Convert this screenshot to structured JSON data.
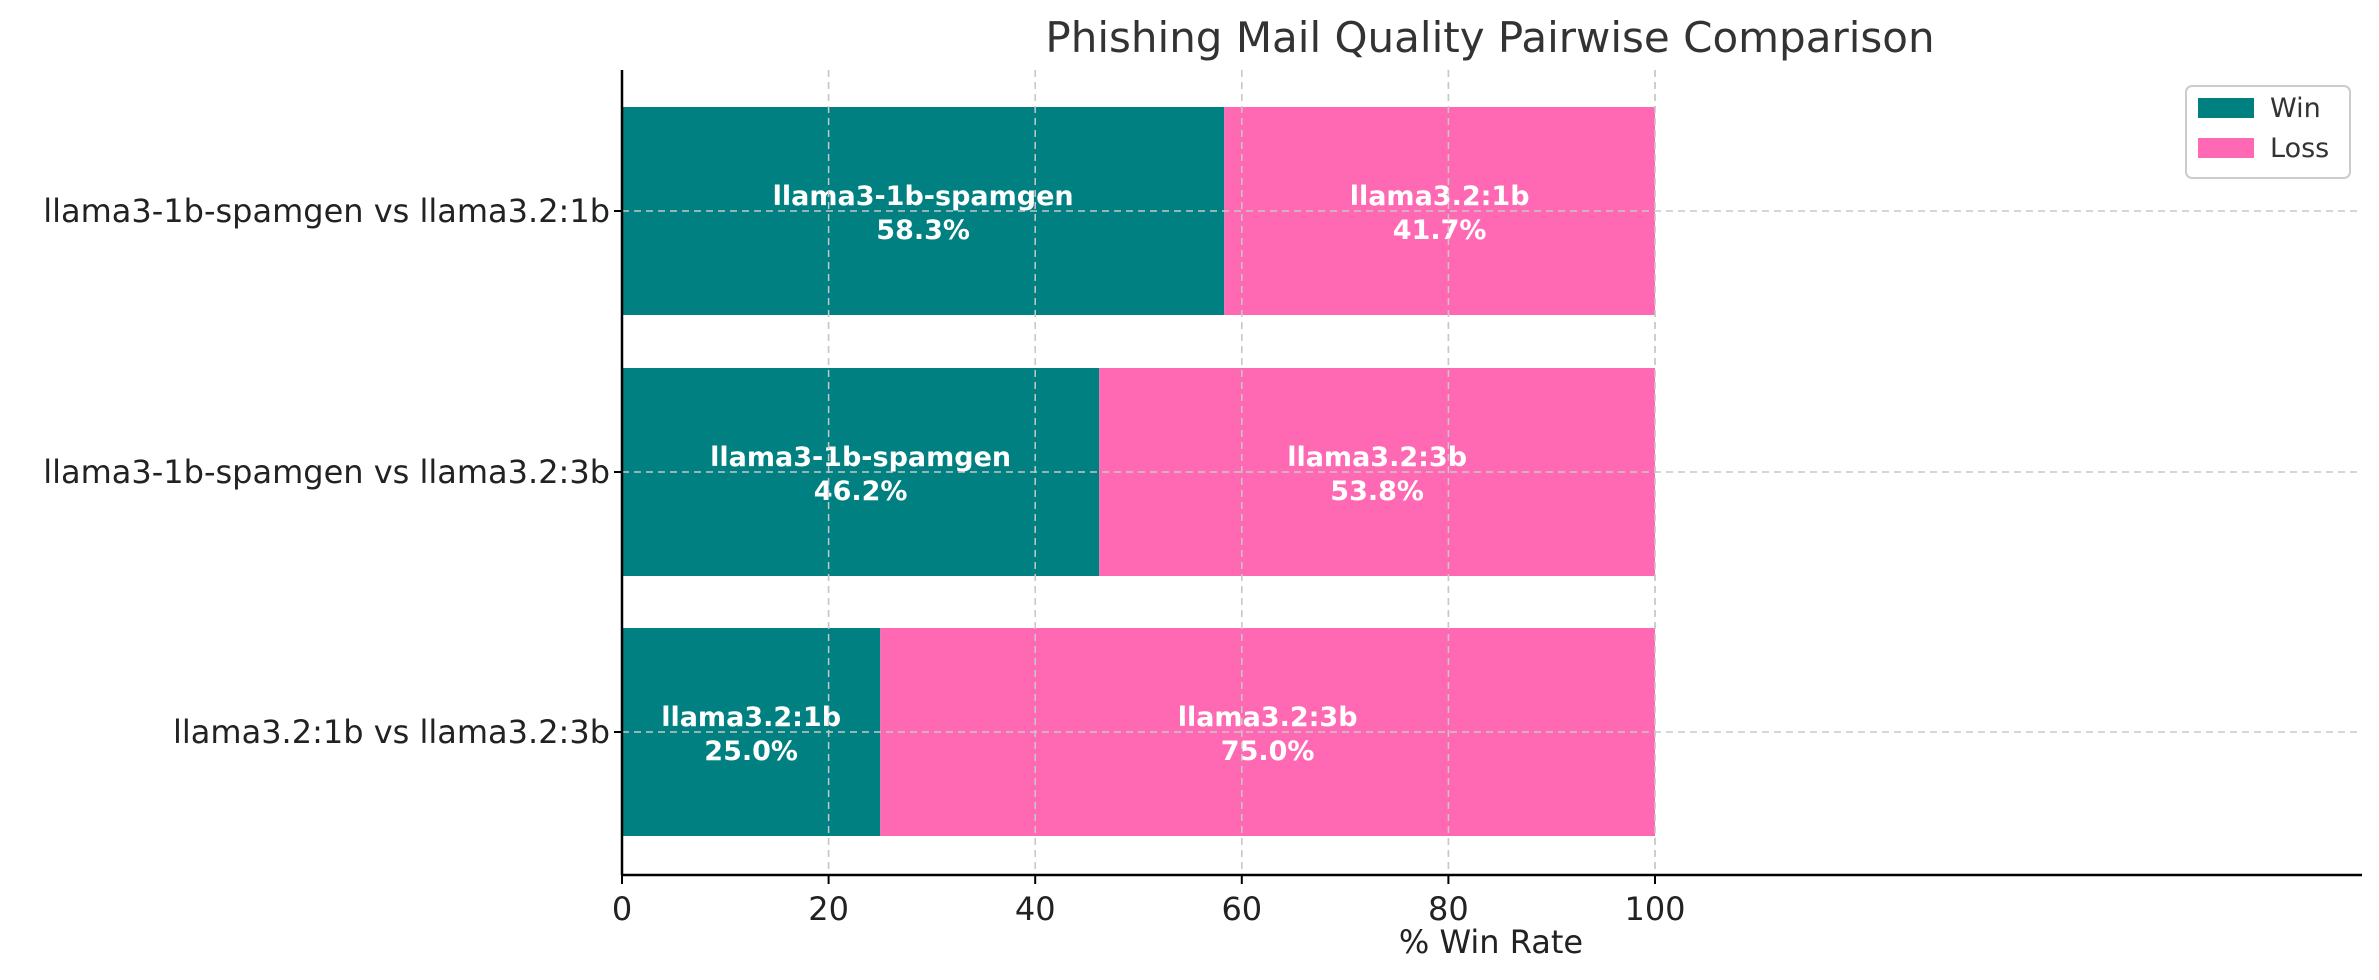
{
  "chart_data": {
    "type": "bar",
    "orientation": "horizontal",
    "stacked": true,
    "title": "Phishing Mail Quality Pairwise Comparison",
    "xlabel": "% Win Rate",
    "ylabel": "",
    "xlim": [
      0,
      100
    ],
    "xticks": [
      "0",
      "20",
      "40",
      "60",
      "80",
      "100"
    ],
    "grid": true,
    "legend_position": "top-right",
    "categories": [
      "llama3-1b-spamgen vs llama3.2:1b",
      "llama3-1b-spamgen vs llama3.2:3b",
      "llama3.2:1b vs llama3.2:3b"
    ],
    "series": [
      {
        "name": "Win",
        "color": "#008080",
        "values": [
          58.3,
          46.2,
          25.0
        ],
        "labels": [
          "llama3-1b-spamgen",
          "llama3-1b-spamgen",
          "llama3.2:1b"
        ],
        "value_labels": [
          "58.3%",
          "46.2%",
          "25.0%"
        ]
      },
      {
        "name": "Loss",
        "color": "#FF69B4",
        "values": [
          41.7,
          53.8,
          75.0
        ],
        "labels": [
          "llama3.2:1b",
          "llama3.2:3b",
          "llama3.2:3b"
        ],
        "value_labels": [
          "41.7%",
          "53.8%",
          "75.0%"
        ]
      }
    ]
  }
}
